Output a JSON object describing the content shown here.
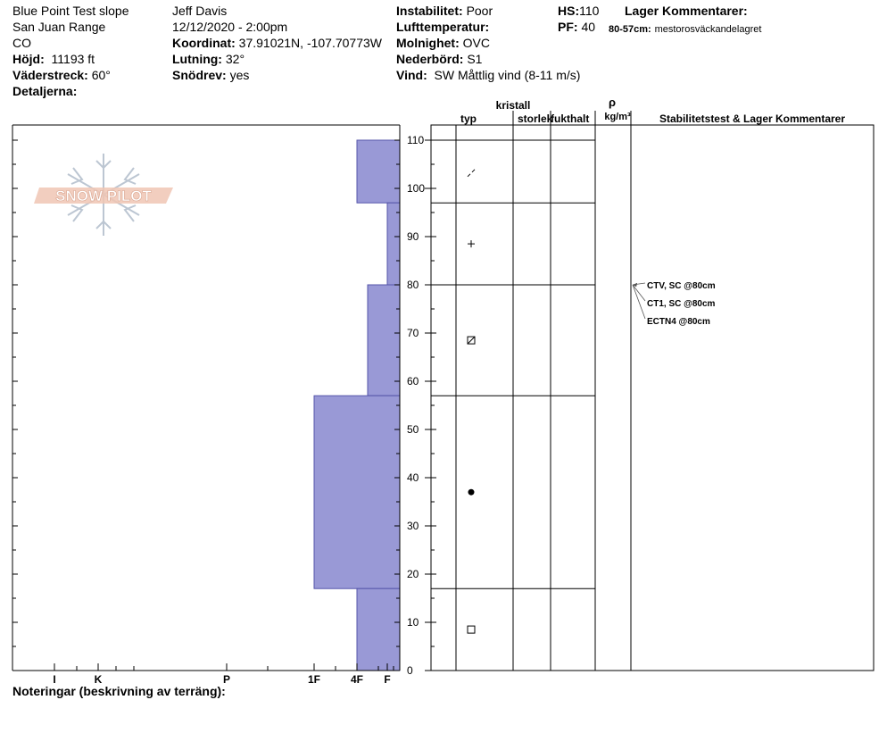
{
  "header": {
    "location": "Blue Point Test slope",
    "range": "San Juan Range",
    "state": "CO",
    "elevation_label": "Höjd:",
    "elevation_value": "11193 ft",
    "aspect_label": "Väderstreck:",
    "aspect_value": "60°",
    "details_label": "Detaljerna:",
    "observer": "Jeff Davis",
    "datetime": "12/12/2020 - 2:00pm",
    "coord_label": "Koordinat:",
    "coord_value": "37.91021N, -107.70773W",
    "slope_label": "Lutning:",
    "slope_value": "32°",
    "drift_label": "Snödrev:",
    "drift_value": "yes",
    "instability_label": "Instabilitet:",
    "instability_value": "Poor",
    "airtemp_label": "Lufttemperatur:",
    "sky_label": "Molnighet:",
    "sky_value": "OVC",
    "precip_label": "Nederbörd:",
    "precip_value": "S1",
    "wind_label": "Vind:",
    "wind_value": "SW  Måttlig vind (8-11 m/s)",
    "hs_label": "HS:",
    "hs_value": "110",
    "pf_label": "PF:",
    "pf_value": "40",
    "layer_comments_label": "Lager Kommentarer:",
    "layer_comment_range": "80-57cm:",
    "layer_comment_text": "mestorosväckandelagret"
  },
  "columns": {
    "crystal": "kristall",
    "type": "typ",
    "size": "storlek",
    "moisture": "fukthalt",
    "rho": "ρ",
    "density_unit": "kg/m³",
    "stability": "Stabilitetstest & Lager Kommentarer"
  },
  "notes_label": "Noteringar (beskrivning av terräng):",
  "logo_text": "SNOW PILOT",
  "colors": {
    "hardness_fill": "#9999d6",
    "hardness_stroke": "#5555aa",
    "grid": "#000000"
  },
  "chart_data": {
    "type": "bar",
    "height_axis": {
      "min": 0,
      "max": 110,
      "ticks": [
        0,
        10,
        20,
        30,
        40,
        50,
        60,
        70,
        80,
        90,
        100,
        110
      ]
    },
    "hardness_axis": {
      "labels": [
        "I",
        "K",
        "P",
        "1F",
        "4F",
        "F"
      ]
    },
    "layers": [
      {
        "bottom": 97,
        "top": 110,
        "hardness": "4F"
      },
      {
        "bottom": 80,
        "top": 97,
        "hardness": "F+"
      },
      {
        "bottom": 57,
        "top": 80,
        "hardness": "4F+"
      },
      {
        "bottom": 17,
        "top": 57,
        "hardness": "1F"
      },
      {
        "bottom": 0,
        "top": 17,
        "hardness": "4F"
      }
    ],
    "grain_types": [
      {
        "height": 103,
        "symbol": "decomposing-fragments"
      },
      {
        "height": 88.5,
        "symbol": "precipitation-particles"
      },
      {
        "height": 68.5,
        "symbol": "faceted-rounded"
      },
      {
        "height": 37,
        "symbol": "melt-forms"
      },
      {
        "height": 8.5,
        "symbol": "faceted-crystals"
      }
    ],
    "stability_tests": [
      {
        "height": 80,
        "label": "CTV, SC @80cm"
      },
      {
        "height": 80,
        "label": "CT1, SC @80cm"
      },
      {
        "height": 80,
        "label": "ECTN4 @80cm"
      }
    ]
  }
}
